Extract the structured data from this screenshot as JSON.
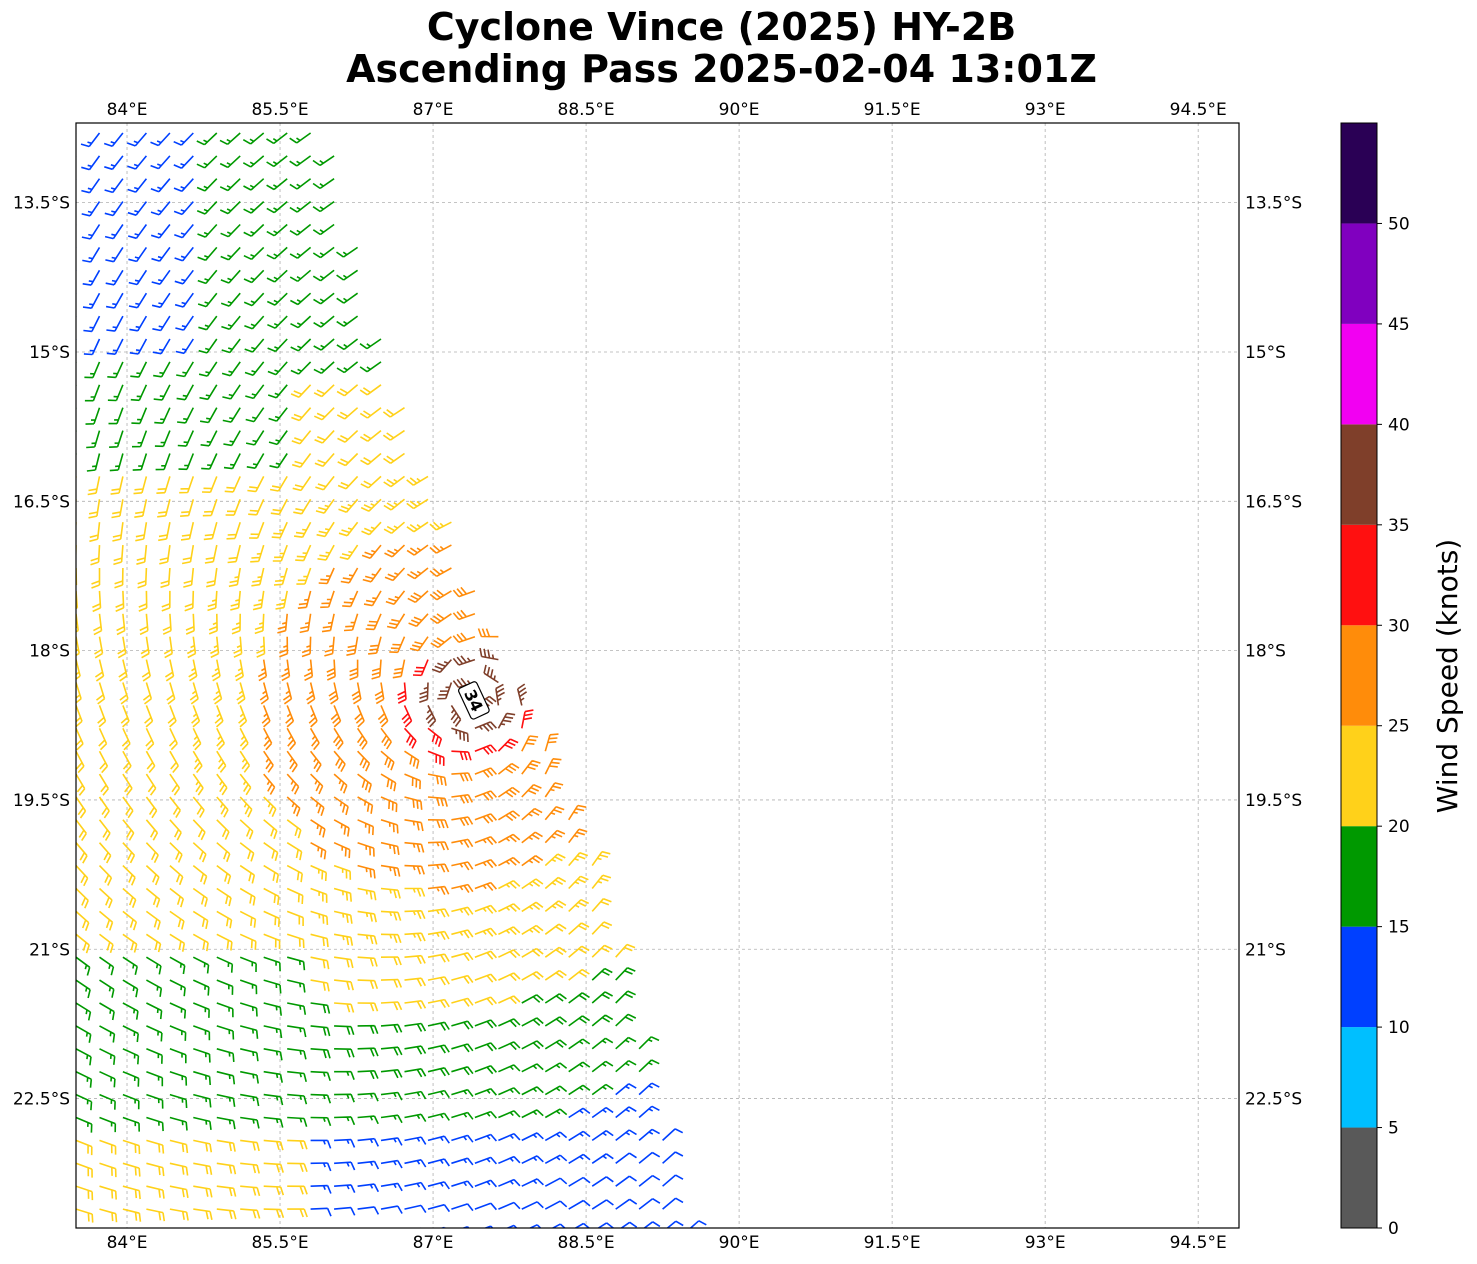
{
  "title_line1": "Cyclone Vince (2025) HY-2B",
  "title_line2": "Ascending Pass 2025-02-04 13:01Z",
  "map": {
    "lon_range": [
      83.5,
      94.9
    ],
    "lat_range": [
      -23.8,
      -12.7
    ],
    "lon_ticks": [
      "84°E",
      "85.5°E",
      "87°E",
      "88.5°E",
      "90°E",
      "91.5°E",
      "93°E",
      "94.5°E"
    ],
    "lon_tick_values": [
      84,
      85.5,
      87,
      88.5,
      90,
      91.5,
      93,
      94.5
    ],
    "lat_ticks": [
      "13.5°S",
      "15°S",
      "16.5°S",
      "18°S",
      "19.5°S",
      "21°S",
      "22.5°S"
    ],
    "lat_tick_values": [
      -13.5,
      -15,
      -16.5,
      -18,
      -19.5,
      -21,
      -22.5
    ],
    "grid": true,
    "storm_marker": {
      "label": "34",
      "lon": 87.4,
      "lat": -18.5
    },
    "swath_eastern_edge": [
      [
        86.0,
        -12.7
      ],
      [
        86.5,
        -14.9
      ],
      [
        87.1,
        -16.5
      ],
      [
        87.8,
        -18.2
      ],
      [
        88.6,
        -20.2
      ],
      [
        89.5,
        -23.8
      ]
    ]
  },
  "colorbar": {
    "label": "Wind Speed (knots)",
    "tick_labels": [
      "0",
      "5",
      "10",
      "15",
      "20",
      "25",
      "30",
      "35",
      "40",
      "45",
      "50"
    ],
    "bins": [
      {
        "min": 0,
        "max": 5,
        "color": "#595959"
      },
      {
        "min": 5,
        "max": 10,
        "color": "#00bfff"
      },
      {
        "min": 10,
        "max": 15,
        "color": "#0040ff"
      },
      {
        "min": 15,
        "max": 20,
        "color": "#009900"
      },
      {
        "min": 20,
        "max": 25,
        "color": "#ffd11a"
      },
      {
        "min": 25,
        "max": 30,
        "color": "#ff8c0a"
      },
      {
        "min": 30,
        "max": 35,
        "color": "#ff1010"
      },
      {
        "min": 35,
        "max": 40,
        "color": "#7f3f2a"
      },
      {
        "min": 40,
        "max": 45,
        "color": "#f200f2"
      },
      {
        "min": 45,
        "max": 50,
        "color": "#8000bf"
      },
      {
        "min": 50,
        "max": 55,
        "color": "#2a0055"
      }
    ]
  }
}
